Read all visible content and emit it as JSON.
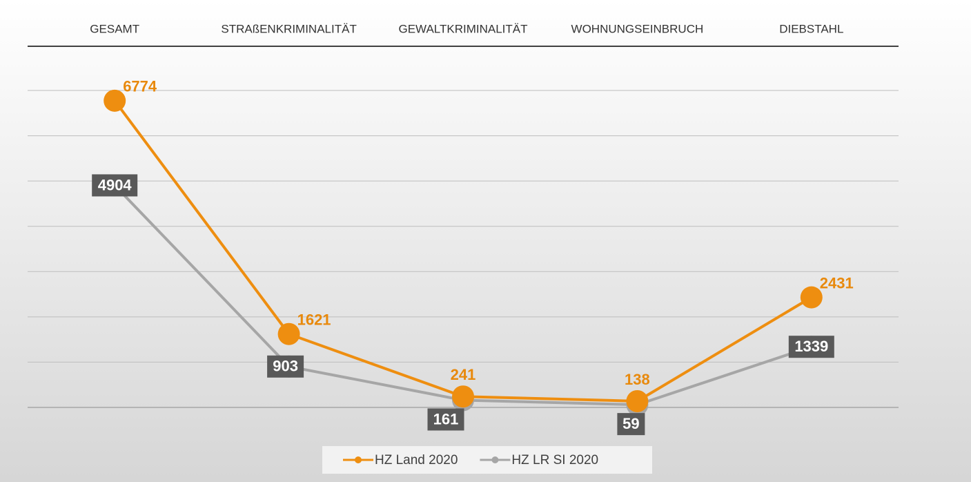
{
  "chart_data": {
    "type": "line",
    "categories": [
      "GESAMT",
      "STRAßENKRIMINALITÄT",
      "GEWALTKRIMINALITÄT",
      "WOHNUNGSEINBRUCH",
      "DIEBSTAHL"
    ],
    "series": [
      {
        "name": "HZ Land 2020",
        "color": "#ee8e10",
        "values": [
          6774,
          1621,
          241,
          138,
          2431
        ]
      },
      {
        "name": "HZ LR SI 2020",
        "color": "#a6a6a6",
        "values": [
          4904,
          903,
          161,
          59,
          1339
        ]
      }
    ],
    "ylim": [
      0,
      7000
    ],
    "yticks": [
      0,
      1000,
      2000,
      3000,
      4000,
      5000,
      6000,
      7000
    ],
    "grid": true,
    "legend": "bottom"
  }
}
